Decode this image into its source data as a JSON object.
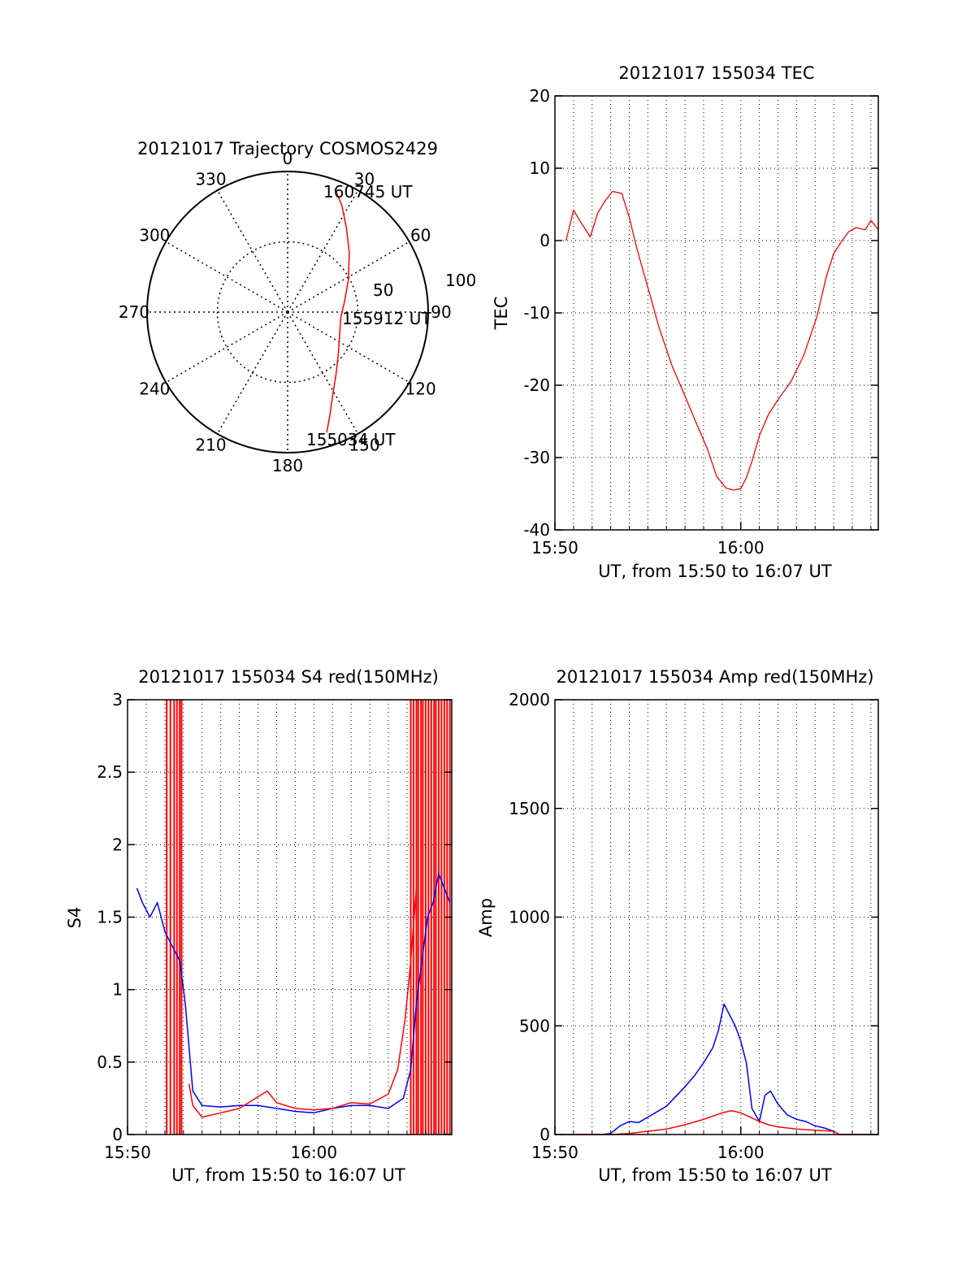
{
  "chart_data": [
    {
      "type": "polar",
      "title": "20121017 Trajectory COSMOS2429",
      "angle_labels": [
        "0",
        "30",
        "60",
        "90",
        "120",
        "150",
        "180",
        "210",
        "240",
        "270",
        "300",
        "330"
      ],
      "radius_labels": [
        "50",
        "100"
      ],
      "rlim": [
        0,
        100
      ],
      "grid": true,
      "series": [
        {
          "color": "#ff0000",
          "points_az_r": [
            [
              162,
              90
            ],
            [
              158,
              80
            ],
            [
              152,
              68
            ],
            [
              143,
              57
            ],
            [
              130,
              47
            ],
            [
              112,
              40
            ],
            [
              96,
              38
            ],
            [
              80,
              41
            ],
            [
              62,
              49
            ],
            [
              46,
              61
            ],
            [
              35,
              73
            ],
            [
              27,
              85
            ],
            [
              21,
              94
            ]
          ]
        }
      ],
      "annotations": [
        "160745 UT",
        "155912 UT",
        "155034 UT"
      ]
    },
    {
      "type": "line",
      "title": "20121017 155034 TEC",
      "xlabel": "UT, from 15:50 to 16:07 UT",
      "ylabel": "TEC",
      "xlim": [
        0,
        17.4
      ],
      "ylim": [
        -40,
        20
      ],
      "xticks": [
        {
          "v": 0,
          "label": "15:50"
        },
        {
          "v": 10,
          "label": "16:00"
        }
      ],
      "yticks": [
        -40,
        -30,
        -20,
        -10,
        0,
        10,
        20
      ],
      "grid": true,
      "series": [
        {
          "color": "#ff0000",
          "x": [
            0.6,
            1.0,
            1.4,
            1.9,
            2.3,
            2.7,
            3.1,
            3.6,
            4.0,
            4.4,
            5.0,
            5.6,
            6.3,
            7.0,
            7.6,
            8.2,
            8.7,
            9.2,
            9.6,
            10.0,
            10.3,
            10.6,
            11.0,
            11.5,
            12.0,
            12.7,
            13.4,
            14.1,
            14.6,
            15.0,
            15.4,
            15.8,
            16.2,
            16.7,
            17.0,
            17.4
          ],
          "y": [
            0,
            4.2,
            2.5,
            0.5,
            3.8,
            5.5,
            6.8,
            6.5,
            3.2,
            -1,
            -6.5,
            -12,
            -17.3,
            -21.5,
            -25.2,
            -28.8,
            -32.6,
            -34.2,
            -34.5,
            -34.3,
            -32.8,
            -30.5,
            -27,
            -24,
            -22,
            -19.5,
            -15.8,
            -10.5,
            -5,
            -1.8,
            -0.2,
            1.2,
            1.8,
            1.5,
            2.8,
            1.5
          ]
        }
      ]
    },
    {
      "type": "line",
      "title": "20121017 155034 S4 red(150MHz)",
      "xlabel": "UT, from 15:50 to 16:07 UT",
      "ylabel": "S4",
      "xlim": [
        0,
        17.4
      ],
      "ylim": [
        0,
        3
      ],
      "xticks": [
        {
          "v": 0,
          "label": "15:50"
        },
        {
          "v": 10,
          "label": "16:00"
        }
      ],
      "yticks": [
        0,
        0.5,
        1,
        1.5,
        2,
        2.5,
        3
      ],
      "ytick_labels": [
        "0",
        "0.5",
        "1",
        "1.5",
        "2",
        "2.5",
        "3"
      ],
      "grid": true,
      "series": [
        {
          "color": "#0000ff",
          "x": [
            0.5,
            0.8,
            1.2,
            1.6,
            2.0,
            2.4,
            2.8,
            3.1,
            3.3,
            3.5,
            4.0,
            5.0,
            6.0,
            7.0,
            8.0,
            9.0,
            10.0,
            11.0,
            12.0,
            13.0,
            14.0,
            14.8,
            15.2,
            15.5,
            15.8,
            16.1,
            16.4,
            16.7,
            17.0,
            17.3
          ],
          "y": [
            1.7,
            1.6,
            1.5,
            1.6,
            1.4,
            1.3,
            1.2,
            0.9,
            0.6,
            0.3,
            0.2,
            0.19,
            0.2,
            0.2,
            0.18,
            0.16,
            0.15,
            0.18,
            0.2,
            0.2,
            0.18,
            0.25,
            0.45,
            0.9,
            1.2,
            1.5,
            1.6,
            1.8,
            1.7,
            1.6
          ]
        },
        {
          "color": "#ff0000",
          "x": [
            3.3,
            3.5,
            4.0,
            5.0,
            6.0,
            7.0,
            7.5,
            8.0,
            9.0,
            10.0,
            11.0,
            12.0,
            13.0,
            14.0,
            14.5,
            14.9,
            15.2,
            15.5
          ],
          "y": [
            0.35,
            0.2,
            0.12,
            0.15,
            0.18,
            0.26,
            0.3,
            0.22,
            0.18,
            0.17,
            0.18,
            0.22,
            0.21,
            0.28,
            0.45,
            0.8,
            1.2,
            1.7
          ]
        }
      ],
      "red_spikes_x": [
        2.1,
        2.3,
        2.5,
        2.65,
        2.8,
        2.9,
        15.2,
        15.35,
        15.5,
        15.6,
        15.75,
        15.85,
        16.0,
        16.15,
        16.3,
        16.45,
        16.55,
        16.7,
        16.85,
        17.0,
        17.15,
        17.3
      ]
    },
    {
      "type": "line",
      "title": "20121017 155034 Amp red(150MHz)",
      "xlabel": "UT, from 15:50 to 16:07 UT",
      "ylabel": "Amp",
      "xlim": [
        0,
        17.4
      ],
      "ylim": [
        0,
        2000
      ],
      "xticks": [
        {
          "v": 0,
          "label": "15:50"
        },
        {
          "v": 10,
          "label": "16:00"
        }
      ],
      "yticks": [
        0,
        500,
        1000,
        1500,
        2000
      ],
      "grid": true,
      "series": [
        {
          "color": "#0000ff",
          "x": [
            0,
            2.5,
            3.0,
            3.5,
            4.0,
            4.5,
            5.0,
            6.0,
            7.0,
            7.5,
            8.0,
            8.5,
            8.8,
            9.1,
            9.4,
            9.7,
            10.0,
            10.3,
            10.6,
            11.0,
            11.3,
            11.6,
            12.0,
            12.5,
            13.0,
            13.5,
            14.0,
            14.5,
            15.0,
            15.3,
            15.5,
            17.4
          ],
          "y": [
            0,
            0,
            5,
            40,
            60,
            55,
            80,
            130,
            220,
            270,
            330,
            400,
            480,
            600,
            550,
            500,
            430,
            330,
            120,
            60,
            180,
            200,
            140,
            90,
            70,
            60,
            40,
            30,
            15,
            0,
            0,
            0
          ]
        },
        {
          "color": "#ff0000",
          "x": [
            0,
            3.0,
            4.0,
            5.0,
            6.0,
            7.0,
            8.0,
            8.5,
            9.0,
            9.5,
            10.0,
            10.5,
            11.0,
            11.5,
            12.0,
            13.0,
            14.0,
            15.0,
            15.3,
            17.4
          ],
          "y": [
            0,
            0,
            5,
            15,
            25,
            45,
            70,
            85,
            100,
            110,
            100,
            80,
            60,
            45,
            35,
            25,
            20,
            15,
            0,
            0
          ]
        }
      ]
    }
  ],
  "polar_annotations": {
    "end": "160745 UT",
    "mid": "155912 UT",
    "start": "155034 UT"
  },
  "titles": {
    "polar": "20121017 Trajectory COSMOS2429",
    "tec": "20121017 155034 TEC",
    "s4": "20121017 155034 S4 red(150MHz)",
    "amp": "20121017 155034 Amp red(150MHz)"
  },
  "axis_labels": {
    "x": "UT, from 15:50 to 16:07 UT",
    "tec_y": "TEC",
    "s4_y": "S4",
    "amp_y": "Amp"
  }
}
